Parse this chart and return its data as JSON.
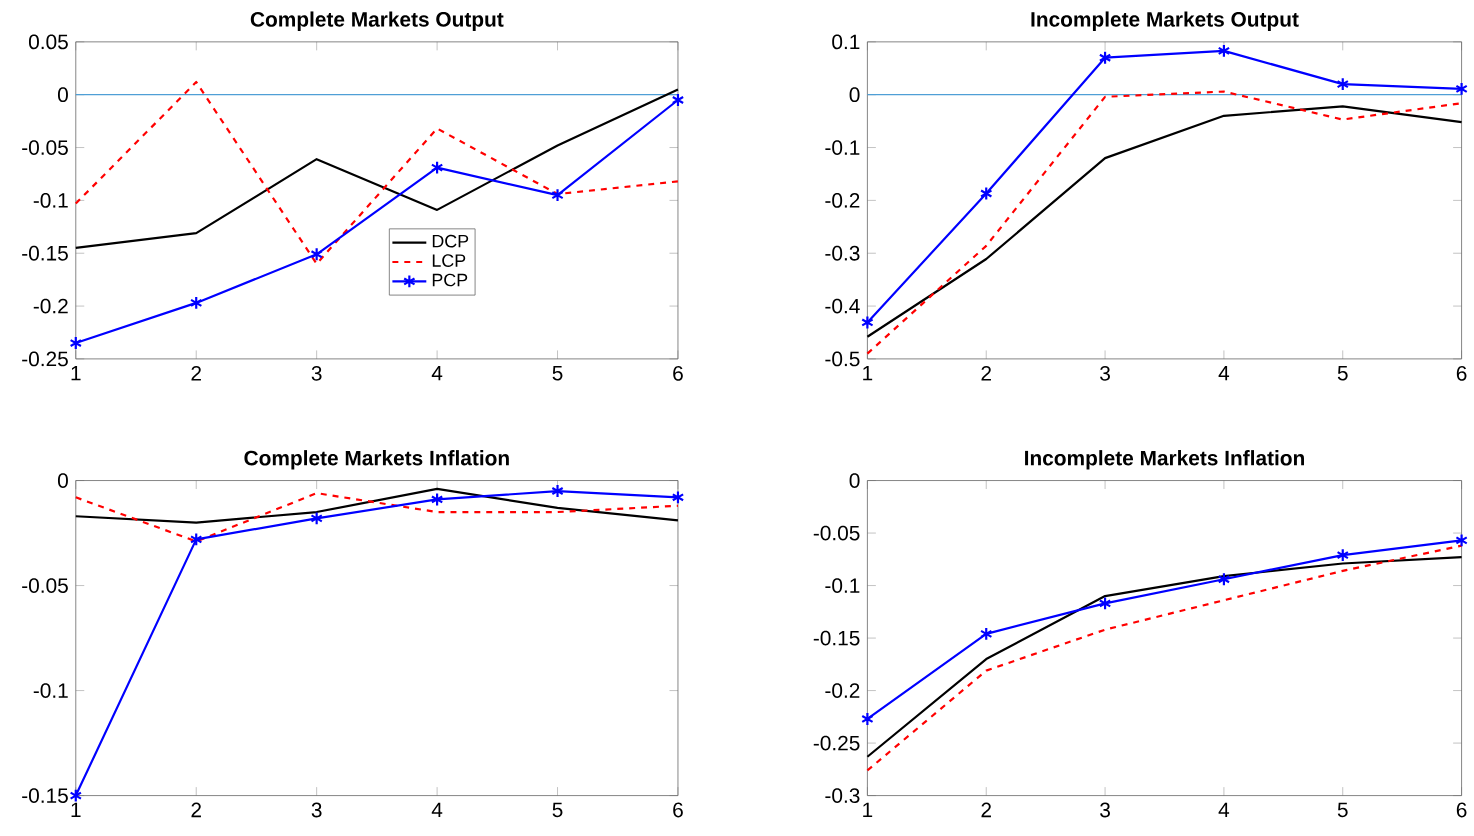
{
  "chart_data": [
    {
      "type": "line",
      "title": "Complete Markets Output",
      "x": [
        1,
        2,
        3,
        4,
        5,
        6
      ],
      "xlim": [
        1,
        6
      ],
      "xticks": [
        1,
        2,
        3,
        4,
        5,
        6
      ],
      "ylim": [
        -0.25,
        0.05
      ],
      "yticks": [
        -0.25,
        -0.2,
        -0.15,
        -0.1,
        -0.05,
        0,
        0.05
      ],
      "legend": "center",
      "ref_lines": [
        {
          "axis": "y",
          "value": 0,
          "color": "#4f9fd6"
        }
      ],
      "series": [
        {
          "name": "DCP",
          "color": "#000000",
          "line_style": "solid",
          "marker": "none",
          "values": [
            -0.145,
            -0.131,
            -0.061,
            -0.109,
            -0.048,
            0.005
          ]
        },
        {
          "name": "LCP",
          "color": "#ff0000",
          "line_style": "dashed",
          "marker": "none",
          "values": [
            -0.103,
            0.012,
            -0.16,
            -0.032,
            -0.094,
            -0.082
          ]
        },
        {
          "name": "PCP",
          "color": "#0000ff",
          "line_style": "solid",
          "marker": "cross",
          "values": [
            -0.235,
            -0.197,
            -0.151,
            -0.069,
            -0.095,
            -0.005
          ]
        }
      ]
    },
    {
      "type": "line",
      "title": "Incomplete Markets Output",
      "x": [
        1,
        2,
        3,
        4,
        5,
        6
      ],
      "xlim": [
        1,
        6
      ],
      "xticks": [
        1,
        2,
        3,
        4,
        5,
        6
      ],
      "ylim": [
        -0.5,
        0.1
      ],
      "yticks": [
        -0.5,
        -0.4,
        -0.3,
        -0.2,
        -0.1,
        0,
        0.1
      ],
      "ref_lines": [
        {
          "axis": "y",
          "value": 0,
          "color": "#4f9fd6"
        }
      ],
      "series": [
        {
          "color": "#000000",
          "line_style": "solid",
          "marker": "none",
          "values": [
            -0.458,
            -0.311,
            -0.12,
            -0.04,
            -0.022,
            -0.052
          ]
        },
        {
          "color": "#ff0000",
          "line_style": "dashed",
          "marker": "none",
          "values": [
            -0.49,
            -0.286,
            -0.004,
            0.006,
            -0.047,
            -0.016
          ]
        },
        {
          "color": "#0000ff",
          "line_style": "solid",
          "marker": "cross",
          "values": [
            -0.431,
            -0.187,
            0.07,
            0.083,
            0.02,
            0.011
          ]
        }
      ]
    },
    {
      "type": "line",
      "title": "Complete Markets Inflation",
      "x": [
        1,
        2,
        3,
        4,
        5,
        6
      ],
      "xlim": [
        1,
        6
      ],
      "xticks": [
        1,
        2,
        3,
        4,
        5,
        6
      ],
      "ylim": [
        -0.15,
        0
      ],
      "yticks": [
        -0.15,
        -0.1,
        -0.05,
        0
      ],
      "series": [
        {
          "color": "#000000",
          "line_style": "solid",
          "marker": "none",
          "values": [
            -0.017,
            -0.02,
            -0.015,
            -0.004,
            -0.013,
            -0.019
          ]
        },
        {
          "color": "#ff0000",
          "line_style": "dashed",
          "marker": "none",
          "values": [
            -0.008,
            -0.029,
            -0.006,
            -0.015,
            -0.015,
            -0.012
          ]
        },
        {
          "color": "#0000ff",
          "line_style": "solid",
          "marker": "cross",
          "values": [
            -0.15,
            -0.028,
            -0.018,
            -0.009,
            -0.005,
            -0.008
          ]
        }
      ]
    },
    {
      "type": "line",
      "title": "Incomplete Markets Inflation",
      "x": [
        1,
        2,
        3,
        4,
        5,
        6
      ],
      "xlim": [
        1,
        6
      ],
      "xticks": [
        1,
        2,
        3,
        4,
        5,
        6
      ],
      "ylim": [
        -0.3,
        0
      ],
      "yticks": [
        -0.3,
        -0.25,
        -0.2,
        -0.15,
        -0.1,
        -0.05,
        0
      ],
      "series": [
        {
          "color": "#000000",
          "line_style": "solid",
          "marker": "none",
          "values": [
            -0.263,
            -0.17,
            -0.11,
            -0.091,
            -0.079,
            -0.073
          ]
        },
        {
          "color": "#ff0000",
          "line_style": "dashed",
          "marker": "none",
          "values": [
            -0.276,
            -0.181,
            -0.142,
            -0.114,
            -0.086,
            -0.062
          ]
        },
        {
          "color": "#0000ff",
          "line_style": "solid",
          "marker": "cross",
          "values": [
            -0.227,
            -0.146,
            -0.117,
            -0.094,
            -0.071,
            -0.057
          ]
        }
      ]
    }
  ]
}
